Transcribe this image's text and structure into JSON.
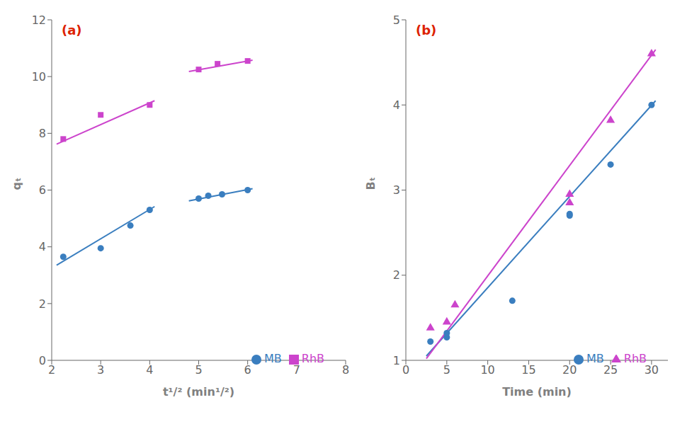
{
  "chart_data": [
    {
      "type": "scatter",
      "annotations": [
        {
          "text": "(a)",
          "color": "#dd2200"
        }
      ],
      "xlabel": "t¹/²  (min¹/²)",
      "ylabel": "qₜ",
      "xlim": [
        2,
        8
      ],
      "ylim": [
        0,
        12
      ],
      "xticks": [
        2,
        3,
        4,
        5,
        6,
        7,
        8
      ],
      "yticks": [
        0,
        2,
        4,
        6,
        8,
        10,
        12
      ],
      "grid": false,
      "legend": "lower right",
      "series": [
        {
          "type": "line",
          "color": "#3a7ebf",
          "x": [
            2.1,
            4.1
          ],
          "values": [
            3.35,
            5.42
          ]
        },
        {
          "type": "line",
          "color": "#3a7ebf",
          "x": [
            4.8,
            6.1
          ],
          "values": [
            5.62,
            6.05
          ]
        },
        {
          "name": "MB",
          "type": "scatter",
          "marker": "circle",
          "color": "#3a7ebf",
          "x": [
            2.236,
            3.0,
            3.606,
            4.0,
            5.0,
            5.196,
            5.477,
            6.0
          ],
          "values": [
            3.65,
            3.95,
            4.75,
            5.3,
            5.7,
            5.8,
            5.85,
            6.0
          ]
        },
        {
          "type": "line",
          "color": "#cc44cc",
          "x": [
            2.1,
            4.1
          ],
          "values": [
            7.62,
            9.15
          ]
        },
        {
          "type": "line",
          "color": "#cc44cc",
          "x": [
            4.8,
            6.1
          ],
          "values": [
            10.18,
            10.58
          ]
        },
        {
          "name": "RhB",
          "type": "scatter",
          "marker": "square",
          "color": "#cc44cc",
          "x": [
            2.236,
            3.0,
            4.0,
            5.0,
            5.385,
            6.0
          ],
          "values": [
            7.8,
            8.65,
            9.0,
            10.25,
            10.45,
            10.55
          ]
        }
      ]
    },
    {
      "type": "scatter",
      "annotations": [
        {
          "text": "(b)",
          "color": "#dd2200"
        }
      ],
      "xlabel": "Time (min)",
      "ylabel": "Bₜ",
      "xlim": [
        0,
        32
      ],
      "ylim": [
        1,
        5
      ],
      "xticks": [
        0,
        5,
        10,
        15,
        20,
        25,
        30
      ],
      "yticks": [
        1,
        2,
        3,
        4,
        5
      ],
      "grid": false,
      "legend": "lower right",
      "series": [
        {
          "type": "line",
          "color": "#3a7ebf",
          "x": [
            2.5,
            30.5
          ],
          "values": [
            1.05,
            4.05
          ]
        },
        {
          "type": "line",
          "color": "#cc44cc",
          "x": [
            2.5,
            30.5
          ],
          "values": [
            1.02,
            4.65
          ]
        },
        {
          "name": "MB",
          "type": "scatter",
          "marker": "circle",
          "color": "#3a7ebf",
          "x": [
            3.0,
            5.0,
            5.0,
            13.0,
            20.0,
            20.0,
            25.0,
            30.0
          ],
          "values": [
            1.22,
            1.27,
            1.32,
            1.7,
            2.7,
            2.72,
            3.3,
            4.0
          ]
        },
        {
          "name": "RhB",
          "type": "scatter",
          "marker": "triangle",
          "color": "#cc44cc",
          "x": [
            3.0,
            5.0,
            6.0,
            20.0,
            20.0,
            25.0,
            30.0
          ],
          "values": [
            1.38,
            1.45,
            1.65,
            2.85,
            2.95,
            3.82,
            4.6
          ]
        }
      ]
    }
  ]
}
